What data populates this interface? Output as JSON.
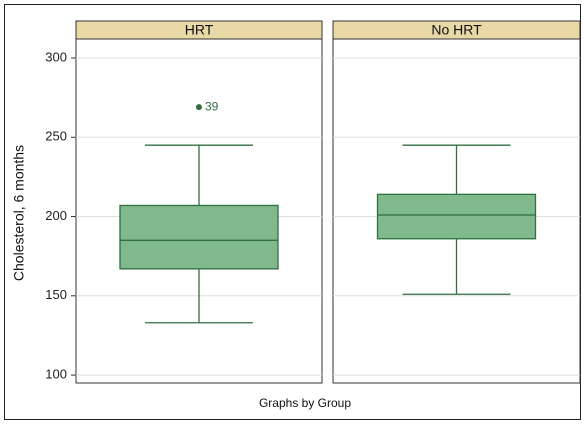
{
  "chart_data": {
    "type": "box",
    "ylabel": "Cholesterol, 6 months",
    "note": "Graphs by Group",
    "ylim": [
      95,
      312
    ],
    "yticks": [
      100,
      150,
      200,
      250,
      300
    ],
    "grid": true,
    "colors": {
      "box_fill": "#7fb98c",
      "box_line": "#2f6f40",
      "strip_fill": "#e8d9a6"
    },
    "panels": [
      {
        "label": "HRT",
        "whisker_low": 133,
        "q1": 167,
        "median": 185,
        "q3": 207,
        "whisker_high": 245,
        "outliers": [
          {
            "value": 269,
            "label": "39"
          }
        ]
      },
      {
        "label": "No HRT",
        "whisker_low": 151,
        "q1": 186,
        "median": 201,
        "q3": 214,
        "whisker_high": 245,
        "outliers": []
      }
    ]
  }
}
